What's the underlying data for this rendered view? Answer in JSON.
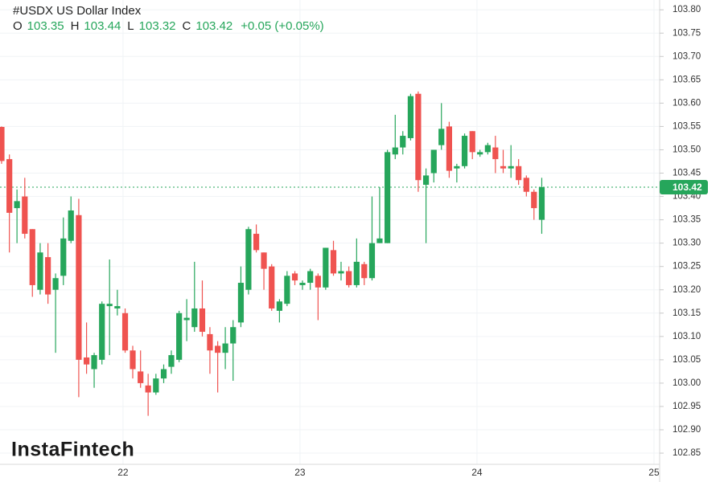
{
  "chart_data": {
    "type": "candlestick",
    "title": "#USDX US Dollar Index",
    "ohlc_labels": [
      "O",
      "H",
      "L",
      "C"
    ],
    "ohlc_values": [
      103.35,
      103.44,
      103.32,
      103.42
    ],
    "change": "+0.05 (+0.05%)",
    "watermark": "InstaFintech",
    "up_color": "#26a65b",
    "down_color": "#ef5350",
    "grid": true,
    "xlim": [
      21.305,
      25.032
    ],
    "xticks": [
      22,
      23,
      24,
      25
    ],
    "ylim": [
      102.826,
      103.821
    ],
    "yticks": [
      102.85,
      {
        "value": 102.9,
        "label": "102.90"
      },
      102.95,
      {
        "value": 103.0,
        "label": "103.00"
      },
      103.05,
      {
        "value": 103.1,
        "label": "103.10"
      },
      103.15,
      {
        "value": 103.2,
        "label": "103.20"
      },
      103.25,
      {
        "value": 103.3,
        "label": "103.30"
      },
      103.35,
      {
        "value": 103.4,
        "label": "103.40"
      },
      103.45,
      {
        "value": 103.5,
        "label": "103.50"
      },
      103.55,
      {
        "value": 103.6,
        "label": "103.60"
      },
      103.65,
      {
        "value": 103.7,
        "label": "103.70"
      },
      103.75,
      {
        "value": 103.8,
        "label": "103.80"
      }
    ],
    "x": [
      21.314,
      21.358,
      21.401,
      21.445,
      21.488,
      21.532,
      21.576,
      21.619,
      21.663,
      21.706,
      21.75,
      21.794,
      21.837,
      21.881,
      21.924,
      21.968,
      22.012,
      22.055,
      22.099,
      22.142,
      22.186,
      22.23,
      22.273,
      22.317,
      22.36,
      22.404,
      22.448,
      22.491,
      22.535,
      22.578,
      22.622,
      22.666,
      22.709,
      22.753,
      22.796,
      22.84,
      22.884,
      22.927,
      22.971,
      23.014,
      23.058,
      23.102,
      23.145,
      23.189,
      23.232,
      23.276,
      23.32,
      23.363,
      23.407,
      23.45,
      23.494,
      23.538,
      23.581,
      23.625,
      23.668,
      23.712,
      23.756,
      23.799,
      23.843,
      23.886,
      23.93,
      23.974,
      24.017,
      24.061,
      24.104,
      24.148,
      24.192,
      24.235,
      24.279,
      24.322,
      24.366
    ],
    "open": [
      103.549,
      103.48,
      103.375,
      103.4,
      103.33,
      103.2,
      103.27,
      103.2,
      103.23,
      103.305,
      103.36,
      103.055,
      103.03,
      103.05,
      103.165,
      103.16,
      103.15,
      103.07,
      103.025,
      102.995,
      102.98,
      103.01,
      103.035,
      103.05,
      103.135,
      103.12,
      103.16,
      103.105,
      103.08,
      103.065,
      103.085,
      103.13,
      103.2,
      103.32,
      103.28,
      103.25,
      103.155,
      103.17,
      103.235,
      103.21,
      103.215,
      103.23,
      103.205,
      103.285,
      103.235,
      103.24,
      103.21,
      103.255,
      103.225,
      103.3,
      103.3,
      103.49,
      103.505,
      103.525,
      103.62,
      103.425,
      103.45,
      103.51,
      103.55,
      103.46,
      103.465,
      103.54,
      103.49,
      103.495,
      103.505,
      103.465,
      103.46,
      103.465,
      103.44,
      103.41,
      103.35
    ],
    "high": [
      103.55,
      103.49,
      103.415,
      103.44,
      103.33,
      103.3,
      103.3,
      103.235,
      103.355,
      103.4,
      103.395,
      103.13,
      103.065,
      103.175,
      103.265,
      103.2,
      103.16,
      103.08,
      103.07,
      103.02,
      103.02,
      103.04,
      103.07,
      103.155,
      103.18,
      103.26,
      103.22,
      103.12,
      103.09,
      103.12,
      103.135,
      103.25,
      103.335,
      103.34,
      103.28,
      103.255,
      103.18,
      103.24,
      103.24,
      103.22,
      103.245,
      103.235,
      103.29,
      103.305,
      103.26,
      103.25,
      103.31,
      103.26,
      103.4,
      103.42,
      103.5,
      103.575,
      103.54,
      103.62,
      103.625,
      103.46,
      103.5,
      103.6,
      103.56,
      103.47,
      103.535,
      103.54,
      103.5,
      103.515,
      103.53,
      103.5,
      103.51,
      103.48,
      103.445,
      103.415,
      103.44
    ],
    "low": [
      103.47,
      103.28,
      103.3,
      103.31,
      103.185,
      103.19,
      103.17,
      103.065,
      103.21,
      103.3,
      102.97,
      103.02,
      102.99,
      103.04,
      103.06,
      103.145,
      103.065,
      103.01,
      102.99,
      102.93,
      102.975,
      103.0,
      103.02,
      103.045,
      103.09,
      103.11,
      103.1,
      103.02,
      102.98,
      103.03,
      103.005,
      103.12,
      103.19,
      103.28,
      103.2,
      103.155,
      103.13,
      103.165,
      103.21,
      103.2,
      103.2,
      103.135,
      103.2,
      103.23,
      103.22,
      103.205,
      103.205,
      103.21,
      103.22,
      103.3,
      103.3,
      103.48,
      103.49,
      103.52,
      103.41,
      103.3,
      103.43,
      103.5,
      103.44,
      103.43,
      103.46,
      103.48,
      103.485,
      103.49,
      103.45,
      103.45,
      103.44,
      103.425,
      103.4,
      103.35,
      103.32
    ],
    "close": [
      103.476,
      103.365,
      103.39,
      103.32,
      103.21,
      103.28,
      103.19,
      103.225,
      103.31,
      103.37,
      103.05,
      103.04,
      103.06,
      103.17,
      103.17,
      103.165,
      103.07,
      103.03,
      103.0,
      102.98,
      103.01,
      103.03,
      103.06,
      103.15,
      103.14,
      103.16,
      103.11,
      103.07,
      103.065,
      103.085,
      103.12,
      103.215,
      103.33,
      103.285,
      103.245,
      103.16,
      103.175,
      103.23,
      103.22,
      103.215,
      103.24,
      103.205,
      103.29,
      103.235,
      103.24,
      103.21,
      103.26,
      103.225,
      103.3,
      103.31,
      103.495,
      103.505,
      103.53,
      103.615,
      103.435,
      103.445,
      103.5,
      103.545,
      103.455,
      103.465,
      103.53,
      103.495,
      103.495,
      103.51,
      103.48,
      103.46,
      103.465,
      103.435,
      103.41,
      103.375,
      103.42
    ]
  }
}
